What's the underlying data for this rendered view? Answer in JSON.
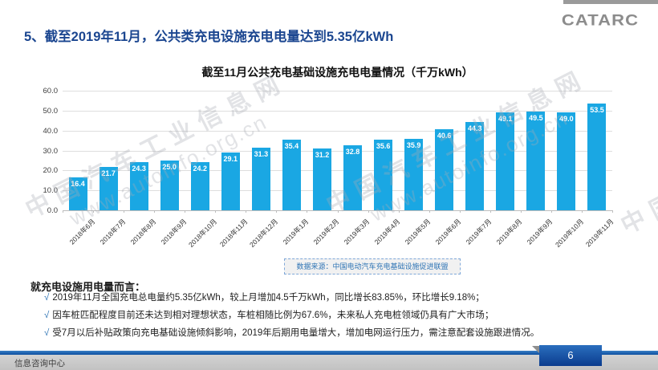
{
  "header": {
    "title": "5、截至2019年11月，公共类充电设施充电电量达到5.35亿kWh",
    "logo": "CATARC"
  },
  "chart_data": {
    "type": "bar",
    "title": "截至11月公共充电基础设施充电电量情况（千万kWh）",
    "categories": [
      "2018年6月",
      "2018年7月",
      "2018年8月",
      "2018年9月",
      "2018年10月",
      "2018年11月",
      "2018年12月",
      "2019年1月",
      "2019年2月",
      "2019年3月",
      "2019年4月",
      "2019年5月",
      "2019年6月",
      "2019年7月",
      "2019年8月",
      "2019年9月",
      "2019年10月",
      "2019年11月"
    ],
    "values": [
      16.4,
      21.7,
      24.3,
      25.0,
      24.2,
      29.1,
      31.3,
      35.4,
      31.2,
      32.8,
      35.6,
      35.9,
      40.6,
      44.3,
      49.1,
      49.5,
      49.0,
      53.5
    ],
    "ylim": [
      0,
      60
    ],
    "yticks": [
      "0.0",
      "10.0",
      "20.0",
      "30.0",
      "40.0",
      "50.0",
      "60.0"
    ],
    "grid": true,
    "legend": "none",
    "bar_color": "#1AA7E3",
    "value_label_style": "inside-top-white",
    "source_note": "数据来源：中国电动汽车充电基础设施促进联盟"
  },
  "body": {
    "heading": "就充电设施用电量而言：",
    "bullets": [
      {
        "marker": "√",
        "text": "2019年11月全国充电总电量约5.35亿kWh，较上月增加4.5千万kWh，同比增长83.85%，环比增长9.18%；"
      },
      {
        "marker": "√",
        "text": "因车桩匹配程度目前还未达到相对理想状态，车桩相随比例为67.6%，未来私人充电桩领域仍具有广大市场；"
      },
      {
        "marker": "√",
        "text": "受7月以后补贴政策向充电基础设施倾斜影响，2019年后期用电量增大，增加电网运行压力，需注意配套设施跟进情况。"
      }
    ]
  },
  "footer": {
    "department": "信息咨询中心",
    "page_number": "6"
  },
  "watermark": {
    "line1": "中国汽车工业信息网",
    "line2": "www.autoinfo.org.cn"
  },
  "colors": {
    "title_blue": "#1B4690",
    "bar_cyan": "#1AA7E3",
    "footer_bar_blue": "#0d4fa0",
    "page_box_blue": "#0b3c8e",
    "source_text_blue": "#2E74B5",
    "logo_gray": "#8c8c8c"
  }
}
